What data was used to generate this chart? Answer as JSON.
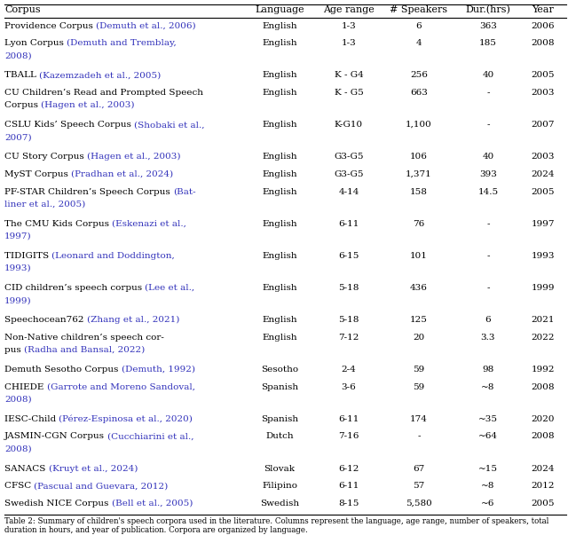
{
  "headers": [
    "Corpus",
    "Language",
    "Age range",
    "# Speakers",
    "Dur.(hrs)",
    "Year"
  ],
  "link_color": "#3333bb",
  "text_color": "#000000",
  "bg_color": "#ffffff",
  "font_size": 7.5,
  "header_font_size": 8.0,
  "footer_font_size": 6.2,
  "rows": [
    {
      "plain": "Providence Corpus ",
      "link": "(Demuth et al., 2006)",
      "link2": "",
      "lang": "English",
      "age": "1-3",
      "spk": "6",
      "dur": "363",
      "yr": "2006",
      "nlines": 1
    },
    {
      "plain": "Lyon Corpus ",
      "link": "(Demuth and Tremblay,",
      "link2": "2008)",
      "lang": "English",
      "age": "1-3",
      "spk": "4",
      "dur": "185",
      "yr": "2008",
      "nlines": 2
    },
    {
      "plain": "TBALL ",
      "link": "(Kazemzadeh et al., 2005)",
      "link2": "",
      "lang": "English",
      "age": "K - G4",
      "spk": "256",
      "dur": "40",
      "yr": "2005",
      "nlines": 1
    },
    {
      "plain": "CU Children’s Read and Prompted Speech\nCorpus ",
      "link": "(Hagen et al., 2003)",
      "link2": "",
      "lang": "English",
      "age": "K - G5",
      "spk": "663",
      "dur": "-",
      "yr": "2003",
      "nlines": 2
    },
    {
      "plain": "CSLU Kids’ Speech Corpus ",
      "link": "(Shobaki et al.,",
      "link2": "2007)",
      "lang": "English",
      "age": "K-G10",
      "spk": "1,100",
      "dur": "-",
      "yr": "2007",
      "nlines": 2
    },
    {
      "plain": "CU Story Corpus ",
      "link": "(Hagen et al., 2003)",
      "link2": "",
      "lang": "English",
      "age": "G3-G5",
      "spk": "106",
      "dur": "40",
      "yr": "2003",
      "nlines": 1
    },
    {
      "plain": "MyST Corpus ",
      "link": "(Pradhan et al., 2024)",
      "link2": "",
      "lang": "English",
      "age": "G3-G5",
      "spk": "1,371",
      "dur": "393",
      "yr": "2024",
      "nlines": 1
    },
    {
      "plain": "PF-STAR Children’s Speech Corpus ",
      "link": "(Bat-",
      "link2": "liner et al., 2005)",
      "lang": "English",
      "age": "4-14",
      "spk": "158",
      "dur": "14.5",
      "yr": "2005",
      "nlines": 2
    },
    {
      "plain": "The CMU Kids Corpus ",
      "link": "(Eskenazi et al.,",
      "link2": "1997)",
      "lang": "English",
      "age": "6-11",
      "spk": "76",
      "dur": "-",
      "yr": "1997",
      "nlines": 2
    },
    {
      "plain": "TIDIGITS ",
      "link": "(Leonard and Doddington,",
      "link2": "1993)",
      "lang": "English",
      "age": "6-15",
      "spk": "101",
      "dur": "-",
      "yr": "1993",
      "nlines": 2
    },
    {
      "plain": "CID children’s speech corpus ",
      "link": "(Lee et al.,",
      "link2": "1999)",
      "lang": "English",
      "age": "5-18",
      "spk": "436",
      "dur": "-",
      "yr": "1999",
      "nlines": 2
    },
    {
      "plain": "Speechocean762 ",
      "link": "(Zhang et al., 2021)",
      "link2": "",
      "lang": "English",
      "age": "5-18",
      "spk": "125",
      "dur": "6",
      "yr": "2021",
      "nlines": 1
    },
    {
      "plain": "Non-Native children’s speech cor-\npus ",
      "link": "(Radha and Bansal, 2022)",
      "link2": "",
      "lang": "English",
      "age": "7-12",
      "spk": "20",
      "dur": "3.3",
      "yr": "2022",
      "nlines": 2
    },
    {
      "plain": "Demuth Sesotho Corpus ",
      "link": "(Demuth, 1992)",
      "link2": "",
      "lang": "Sesotho",
      "age": "2-4",
      "spk": "59",
      "dur": "98",
      "yr": "1992",
      "nlines": 1
    },
    {
      "plain": "CHIEDE ",
      "link": "(Garrote and Moreno Sandoval,",
      "link2": "2008)",
      "lang": "Spanish",
      "age": "3-6",
      "spk": "59",
      "dur": "~8",
      "yr": "2008",
      "nlines": 2
    },
    {
      "plain": "IESC-Child ",
      "link": "(Pérez-Espinosa et al., 2020)",
      "link2": "",
      "lang": "Spanish",
      "age": "6-11",
      "spk": "174",
      "dur": "~35",
      "yr": "2020",
      "nlines": 1
    },
    {
      "plain": "JASMIN-CGN Corpus ",
      "link": "(Cucchiarini et al.,",
      "link2": "2008)",
      "lang": "Dutch",
      "age": "7-16",
      "spk": "-",
      "dur": "~64",
      "yr": "2008",
      "nlines": 2
    },
    {
      "plain": "SANACS ",
      "link": "(Kruyt et al., 2024)",
      "link2": "",
      "lang": "Slovak",
      "age": "6-12",
      "spk": "67",
      "dur": "~15",
      "yr": "2024",
      "nlines": 1
    },
    {
      "plain": "CFSC ",
      "link": "(Pascual and Guevara, 2012)",
      "link2": "",
      "lang": "Filipino",
      "age": "6-11",
      "spk": "57",
      "dur": "~8",
      "yr": "2012",
      "nlines": 1
    },
    {
      "plain": "Swedish NICE Corpus ",
      "link": "(Bell et al., 2005)",
      "link2": "",
      "lang": "Swedish",
      "age": "8-15",
      "spk": "5,580",
      "dur": "~6",
      "yr": "2005",
      "nlines": 1
    }
  ],
  "footer": "Table 2: Summary of children's speech corpora used in the literature. Columns represent the language, age range, number of speakers, total\nduration in hours, and year of publication. Corpora are organized by language."
}
